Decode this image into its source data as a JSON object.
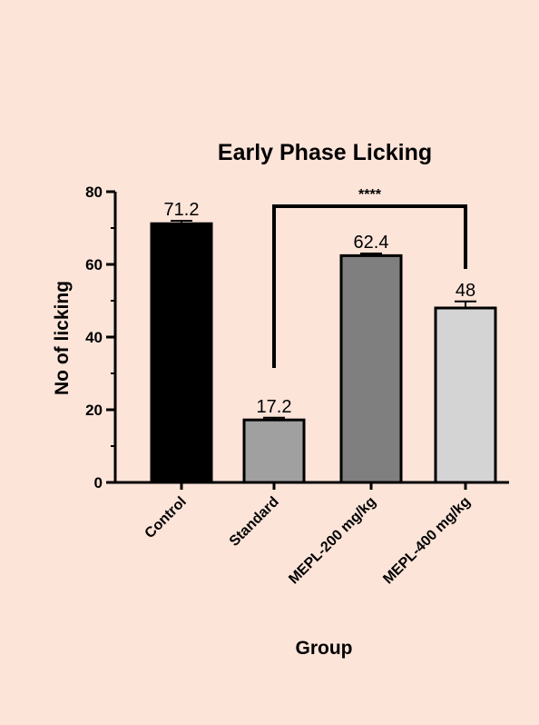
{
  "chart_data": {
    "type": "bar",
    "title": "Early Phase Licking",
    "xlabel": "Group",
    "ylabel": "No of licking",
    "categories": [
      "Control",
      "Standard",
      "MEPL-200 mg/kg",
      "MEPL-400 mg/kg"
    ],
    "values": [
      71.2,
      17.2,
      62.4,
      48
    ],
    "value_labels": [
      "71.2",
      "17.2",
      "62.4",
      "48"
    ],
    "errors": [
      0.8,
      0.6,
      0.6,
      1.8
    ],
    "colors": [
      "#000000",
      "#a0a0a0",
      "#7f7f7f",
      "#d4d4d4"
    ],
    "ylim": [
      0,
      80
    ],
    "yticks": [
      0,
      20,
      40,
      60,
      80
    ],
    "ytick_labels": [
      "0",
      "20",
      "40",
      "60",
      "80"
    ],
    "grid": false,
    "significance": {
      "from": "Standard",
      "to": "MEPL-400 mg/kg",
      "label": "****"
    }
  }
}
